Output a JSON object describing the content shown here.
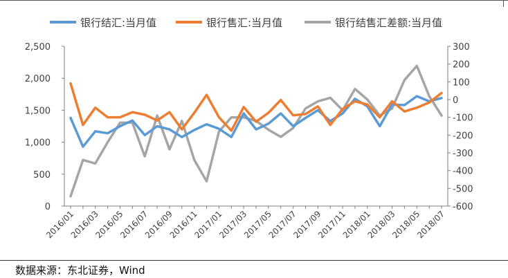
{
  "chart_data": {
    "type": "line",
    "categories": [
      "2016/01",
      "2016/02",
      "2016/03",
      "2016/04",
      "2016/05",
      "2016/06",
      "2016/07",
      "2016/08",
      "2016/09",
      "2016/10",
      "2016/11",
      "2016/12",
      "2017/01",
      "2017/02",
      "2017/03",
      "2017/04",
      "2017/05",
      "2017/06",
      "2017/07",
      "2017/08",
      "2017/09",
      "2017/10",
      "2017/11",
      "2017/12",
      "2018/01",
      "2018/02",
      "2018/03",
      "2018/04",
      "2018/05",
      "2018/06",
      "2018/07"
    ],
    "tick_labels": [
      "2016/01",
      "2016/03",
      "2016/05",
      "2016/07",
      "2016/09",
      "2016/11",
      "2017/01",
      "2017/03",
      "2017/05",
      "2017/07",
      "2017/09",
      "2017/11",
      "2018/01",
      "2018/03",
      "2018/05",
      "2018/07"
    ],
    "series": [
      {
        "name": "银行结汇:当月值",
        "axis": "left",
        "color": "#5B9BD5",
        "values": [
          1380,
          930,
          1170,
          1140,
          1250,
          1340,
          1110,
          1250,
          1200,
          1080,
          1190,
          1280,
          1210,
          1080,
          1450,
          1200,
          1290,
          1450,
          1250,
          1380,
          1500,
          1330,
          1450,
          1680,
          1560,
          1250,
          1590,
          1580,
          1720,
          1640,
          1690
        ]
      },
      {
        "name": "银行售汇:当月值",
        "axis": "left",
        "color": "#ED7D31",
        "values": [
          1920,
          1270,
          1540,
          1390,
          1390,
          1470,
          1430,
          1340,
          1470,
          1200,
          1460,
          1740,
          1390,
          1180,
          1550,
          1320,
          1460,
          1660,
          1420,
          1440,
          1560,
          1270,
          1520,
          1640,
          1590,
          1390,
          1640,
          1480,
          1540,
          1620,
          1770
        ]
      },
      {
        "name": "银行结售汇差额:当月值",
        "axis": "right",
        "color": "#A5A5A5",
        "values": [
          -545,
          -340,
          -360,
          -240,
          -130,
          -130,
          -320,
          -90,
          -280,
          -120,
          -340,
          -460,
          -180,
          -100,
          -100,
          -120,
          -170,
          -210,
          -160,
          -50,
          -10,
          10,
          -60,
          60,
          0,
          -90,
          -50,
          110,
          190,
          20,
          -90
        ]
      }
    ],
    "y_left": {
      "min": 0,
      "max": 2500,
      "step": 500,
      "tick_labels": [
        "0",
        "500",
        "1,000",
        "1,500",
        "2,000",
        "2,500"
      ]
    },
    "y_right": {
      "min": -600,
      "max": 300,
      "step": 100,
      "tick_labels": [
        "-600",
        "-500",
        "-400",
        "-300",
        "-200",
        "-100",
        "0",
        "100",
        "200",
        "300"
      ]
    },
    "legend_position": "top",
    "grid": false
  },
  "source_text": "数据来源：东北证券，Wind"
}
